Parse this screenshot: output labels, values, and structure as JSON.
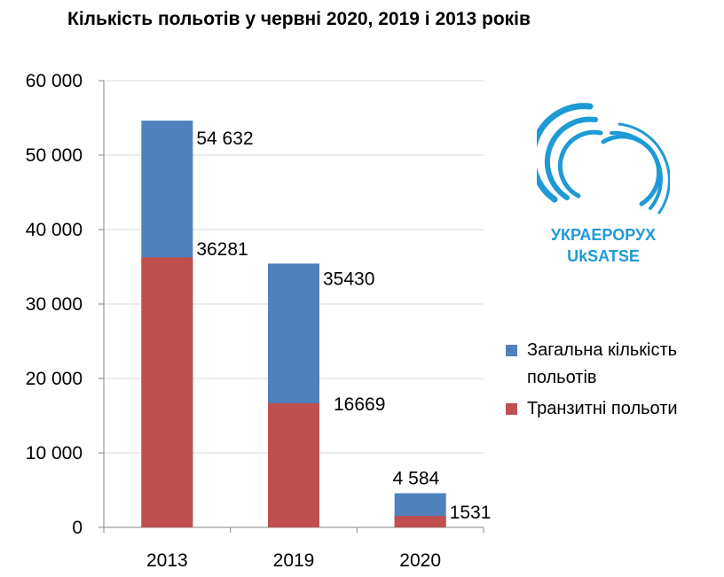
{
  "chart_data": {
    "type": "bar",
    "stacked": false,
    "title": "Кількість польотів у червні 2020, 2019 і 2013 років",
    "xlabel": "",
    "ylabel": "",
    "categories": [
      "2013",
      "2019",
      "2020"
    ],
    "ylim": [
      0,
      60000
    ],
    "yticks": [
      0,
      10000,
      20000,
      30000,
      40000,
      50000,
      60000
    ],
    "ytick_labels": [
      "0",
      "10 000",
      "20 000",
      "30 000",
      "40 000",
      "50 000",
      "60 000"
    ],
    "grid": true,
    "legend_position": "right",
    "series": [
      {
        "name": "Загальна кількість польотів",
        "color": "#4f81bd",
        "values": [
          54632,
          35430,
          4584
        ],
        "labels": [
          "54 632",
          "35430",
          "4 584"
        ]
      },
      {
        "name": "Транзитні польоти",
        "color": "#c0504d",
        "values": [
          36281,
          16669,
          1531
        ],
        "labels": [
          "36281",
          "16669",
          "1531"
        ]
      }
    ]
  },
  "logo": {
    "line1": "УКРАЕРОРУХ",
    "line2": "UkSATSE",
    "color": "#1e9ad6"
  }
}
